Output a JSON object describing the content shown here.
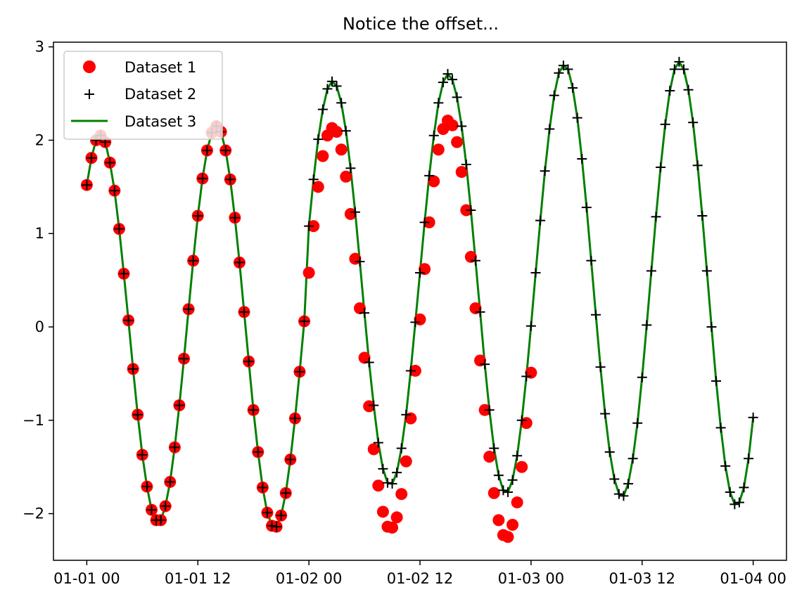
{
  "chart_data": {
    "type": "line",
    "title": "Notice the offset...",
    "xlabel": "",
    "ylabel": "",
    "x_unit": "datetime",
    "xlim": [
      "2021-01-01T00:00",
      "2021-01-04T00:00"
    ],
    "ylim": [
      -2.5,
      3.05
    ],
    "x_ticks": [
      "01-01 00",
      "01-01 12",
      "01-02 00",
      "01-02 12",
      "01-03 00",
      "01-03 12",
      "01-04 00"
    ],
    "y_ticks": [
      "−2",
      "−1",
      "0",
      "1",
      "2",
      "3"
    ],
    "grid": false,
    "legend_position": "upper-left",
    "series": [
      {
        "name": "Dataset 1",
        "style": "marker-circle",
        "color": "#ff0000",
        "x": [
          "2021-01-01T00:00",
          "2021-01-01T00:30",
          "2021-01-01T01:00",
          "2021-01-01T01:30",
          "2021-01-01T02:00",
          "2021-01-01T02:30",
          "2021-01-01T03:00",
          "2021-01-01T03:30",
          "2021-01-01T04:00",
          "2021-01-01T04:30",
          "2021-01-01T05:00",
          "2021-01-01T05:30",
          "2021-01-01T06:00",
          "2021-01-01T06:30",
          "2021-01-01T07:00",
          "2021-01-01T07:30",
          "2021-01-01T08:00",
          "2021-01-01T08:30",
          "2021-01-01T09:00",
          "2021-01-01T09:30",
          "2021-01-01T10:00",
          "2021-01-01T10:30",
          "2021-01-01T11:00",
          "2021-01-01T11:30",
          "2021-01-01T12:00",
          "2021-01-01T12:30",
          "2021-01-01T13:00",
          "2021-01-01T13:30",
          "2021-01-01T14:00",
          "2021-01-01T14:30",
          "2021-01-01T15:00",
          "2021-01-01T15:30",
          "2021-01-01T16:00",
          "2021-01-01T16:30",
          "2021-01-01T17:00",
          "2021-01-01T17:30",
          "2021-01-01T18:00",
          "2021-01-01T18:30",
          "2021-01-01T19:00",
          "2021-01-01T19:30",
          "2021-01-01T20:00",
          "2021-01-01T20:30",
          "2021-01-01T21:00",
          "2021-01-01T21:30",
          "2021-01-01T22:00",
          "2021-01-01T22:30",
          "2021-01-01T23:00",
          "2021-01-01T23:30",
          "2021-01-02T00:00",
          "2021-01-02T00:30",
          "2021-01-02T01:00",
          "2021-01-02T01:30",
          "2021-01-02T02:00",
          "2021-01-02T02:30",
          "2021-01-02T03:00",
          "2021-01-02T03:30",
          "2021-01-02T04:00",
          "2021-01-02T04:30",
          "2021-01-02T05:00",
          "2021-01-02T05:30",
          "2021-01-02T06:00",
          "2021-01-02T06:30",
          "2021-01-02T07:00",
          "2021-01-02T07:30",
          "2021-01-02T08:00",
          "2021-01-02T08:30",
          "2021-01-02T09:00",
          "2021-01-02T09:30",
          "2021-01-02T10:00",
          "2021-01-02T10:30",
          "2021-01-02T11:00",
          "2021-01-02T11:30",
          "2021-01-02T12:00",
          "2021-01-02T12:30",
          "2021-01-02T13:00",
          "2021-01-02T13:30",
          "2021-01-02T14:00",
          "2021-01-02T14:30",
          "2021-01-02T15:00",
          "2021-01-02T15:30",
          "2021-01-02T16:00",
          "2021-01-02T16:30",
          "2021-01-02T17:00",
          "2021-01-02T17:30",
          "2021-01-02T18:00",
          "2021-01-02T18:30",
          "2021-01-02T19:00",
          "2021-01-02T19:30",
          "2021-01-02T20:00",
          "2021-01-02T20:30",
          "2021-01-02T21:00",
          "2021-01-02T21:30",
          "2021-01-02T22:00",
          "2021-01-02T22:30",
          "2021-01-02T23:00",
          "2021-01-02T23:30",
          "2021-01-03T00:00"
        ],
        "y": [
          1.52,
          1.81,
          2.0,
          2.05,
          1.98,
          1.76,
          1.46,
          1.05,
          0.57,
          0.07,
          -0.45,
          -0.94,
          -1.37,
          -1.71,
          -1.96,
          -2.07,
          -2.07,
          -1.92,
          -1.66,
          -1.29,
          -0.84,
          -0.34,
          0.19,
          0.71,
          1.19,
          1.59,
          1.89,
          2.08,
          2.15,
          2.09,
          1.89,
          1.58,
          1.17,
          0.69,
          0.16,
          -0.37,
          -0.89,
          -1.34,
          -1.72,
          -1.99,
          -2.13,
          -2.14,
          -2.02,
          -1.78,
          -1.42,
          -0.98,
          -0.48,
          0.06,
          0.58,
          1.08,
          1.5,
          1.83,
          2.05,
          2.13,
          2.09,
          1.9,
          1.61,
          1.21,
          0.73,
          0.2,
          -0.33,
          -0.85,
          -1.31,
          -1.7,
          -1.98,
          -2.14,
          -2.15,
          -2.04,
          -1.79,
          -1.44,
          -0.98,
          -0.47,
          0.08,
          0.62,
          1.12,
          1.56,
          1.9,
          2.12,
          2.21,
          2.16,
          1.98,
          1.66,
          1.25,
          0.75,
          0.2,
          -0.36,
          -0.89,
          -1.39,
          -1.78,
          -2.07,
          -2.23,
          -2.25,
          -2.12,
          -1.88,
          -1.5,
          -1.03,
          -0.49
        ]
      },
      {
        "name": "Dataset 2",
        "style": "marker-plus",
        "color": "#000000",
        "x": [
          "2021-01-01T00:00",
          "2021-01-01T00:30",
          "2021-01-01T01:00",
          "2021-01-01T01:30",
          "2021-01-01T02:00",
          "2021-01-01T02:30",
          "2021-01-01T03:00",
          "2021-01-01T03:30",
          "2021-01-01T04:00",
          "2021-01-01T04:30",
          "2021-01-01T05:00",
          "2021-01-01T05:30",
          "2021-01-01T06:00",
          "2021-01-01T06:30",
          "2021-01-01T07:00",
          "2021-01-01T07:30",
          "2021-01-01T08:00",
          "2021-01-01T08:30",
          "2021-01-01T09:00",
          "2021-01-01T09:30",
          "2021-01-01T10:00",
          "2021-01-01T10:30",
          "2021-01-01T11:00",
          "2021-01-01T11:30",
          "2021-01-01T12:00",
          "2021-01-01T12:30",
          "2021-01-01T13:00",
          "2021-01-01T13:30",
          "2021-01-01T14:00",
          "2021-01-01T14:30",
          "2021-01-01T15:00",
          "2021-01-01T15:30",
          "2021-01-01T16:00",
          "2021-01-01T16:30",
          "2021-01-01T17:00",
          "2021-01-01T17:30",
          "2021-01-01T18:00",
          "2021-01-01T18:30",
          "2021-01-01T19:00",
          "2021-01-01T19:30",
          "2021-01-01T20:00",
          "2021-01-01T20:30",
          "2021-01-01T21:00",
          "2021-01-01T21:30",
          "2021-01-01T22:00",
          "2021-01-01T22:30",
          "2021-01-01T23:00",
          "2021-01-01T23:30",
          "2021-01-02T00:00",
          "2021-01-02T00:30",
          "2021-01-02T01:00",
          "2021-01-02T01:30",
          "2021-01-02T02:00",
          "2021-01-02T02:30",
          "2021-01-02T03:00",
          "2021-01-02T03:30",
          "2021-01-02T04:00",
          "2021-01-02T04:30",
          "2021-01-02T05:00",
          "2021-01-02T05:30",
          "2021-01-02T06:00",
          "2021-01-02T06:30",
          "2021-01-02T07:00",
          "2021-01-02T07:30",
          "2021-01-02T08:00",
          "2021-01-02T08:30",
          "2021-01-02T09:00",
          "2021-01-02T09:30",
          "2021-01-02T10:00",
          "2021-01-02T10:30",
          "2021-01-02T11:00",
          "2021-01-02T11:30",
          "2021-01-02T12:00",
          "2021-01-02T12:30",
          "2021-01-02T13:00",
          "2021-01-02T13:30",
          "2021-01-02T14:00",
          "2021-01-02T14:30",
          "2021-01-02T15:00",
          "2021-01-02T15:30",
          "2021-01-02T16:00",
          "2021-01-02T16:30",
          "2021-01-02T17:00",
          "2021-01-02T17:30",
          "2021-01-02T18:00",
          "2021-01-02T18:30",
          "2021-01-02T19:00",
          "2021-01-02T19:30",
          "2021-01-02T20:00",
          "2021-01-02T20:30",
          "2021-01-02T21:00",
          "2021-01-02T21:30",
          "2021-01-02T22:00",
          "2021-01-02T22:30",
          "2021-01-02T23:00",
          "2021-01-02T23:30",
          "2021-01-03T00:00",
          "2021-01-03T00:30",
          "2021-01-03T01:00",
          "2021-01-03T01:30",
          "2021-01-03T02:00",
          "2021-01-03T02:30",
          "2021-01-03T03:00",
          "2021-01-03T03:30",
          "2021-01-03T04:00",
          "2021-01-03T04:30",
          "2021-01-03T05:00",
          "2021-01-03T05:30",
          "2021-01-03T06:00",
          "2021-01-03T06:30",
          "2021-01-03T07:00",
          "2021-01-03T07:30",
          "2021-01-03T08:00",
          "2021-01-03T08:30",
          "2021-01-03T09:00",
          "2021-01-03T09:30",
          "2021-01-03T10:00",
          "2021-01-03T10:30",
          "2021-01-03T11:00",
          "2021-01-03T11:30",
          "2021-01-03T12:00",
          "2021-01-03T12:30",
          "2021-01-03T13:00",
          "2021-01-03T13:30",
          "2021-01-03T14:00",
          "2021-01-03T14:30",
          "2021-01-03T15:00",
          "2021-01-03T15:30",
          "2021-01-03T16:00",
          "2021-01-03T16:30",
          "2021-01-03T17:00",
          "2021-01-03T17:30",
          "2021-01-03T18:00",
          "2021-01-03T18:30",
          "2021-01-03T19:00",
          "2021-01-03T19:30",
          "2021-01-03T20:00",
          "2021-01-03T20:30",
          "2021-01-03T21:00",
          "2021-01-03T21:30",
          "2021-01-03T22:00",
          "2021-01-03T22:30",
          "2021-01-03T23:00",
          "2021-01-03T23:30",
          "2021-01-04T00:00"
        ],
        "y": [
          1.52,
          1.81,
          2.0,
          2.05,
          1.98,
          1.76,
          1.46,
          1.05,
          0.57,
          0.07,
          -0.45,
          -0.94,
          -1.37,
          -1.71,
          -1.96,
          -2.07,
          -2.07,
          -1.92,
          -1.66,
          -1.29,
          -0.84,
          -0.34,
          0.19,
          0.71,
          1.19,
          1.59,
          1.89,
          2.08,
          2.15,
          2.09,
          1.89,
          1.58,
          1.17,
          0.69,
          0.16,
          -0.37,
          -0.89,
          -1.34,
          -1.72,
          -1.99,
          -2.13,
          -2.14,
          -2.02,
          -1.78,
          -1.42,
          -0.98,
          -0.48,
          0.06,
          1.08,
          1.58,
          2.01,
          2.33,
          2.55,
          2.63,
          2.58,
          2.4,
          2.1,
          1.7,
          1.23,
          0.7,
          0.15,
          -0.38,
          -0.84,
          -1.24,
          -1.52,
          -1.67,
          -1.68,
          -1.56,
          -1.3,
          -0.94,
          -0.47,
          0.05,
          0.58,
          1.12,
          1.62,
          2.05,
          2.4,
          2.62,
          2.71,
          2.65,
          2.46,
          2.15,
          1.74,
          1.25,
          0.71,
          0.16,
          -0.4,
          -0.89,
          -1.3,
          -1.59,
          -1.75,
          -1.77,
          -1.64,
          -1.38,
          -1.0,
          -0.53,
          0.01,
          0.58,
          1.14,
          1.67,
          2.12,
          2.48,
          2.72,
          2.8,
          2.76,
          2.56,
          2.24,
          1.8,
          1.28,
          0.71,
          0.13,
          -0.43,
          -0.93,
          -1.34,
          -1.63,
          -1.79,
          -1.81,
          -1.68,
          -1.41,
          -1.03,
          -0.54,
          0.02,
          0.6,
          1.18,
          1.71,
          2.17,
          2.53,
          2.76,
          2.84,
          2.76,
          2.54,
          2.19,
          1.73,
          1.19,
          0.6,
          0.0,
          -0.58,
          -1.08,
          -1.49,
          -1.77,
          -1.9,
          -1.88,
          -1.72,
          -1.41,
          -0.97
        ]
      },
      {
        "name": "Dataset 3",
        "style": "line",
        "color": "#008000",
        "x": [
          "2021-01-01T00:00",
          "2021-01-01T00:30",
          "2021-01-01T01:00",
          "2021-01-01T01:30",
          "2021-01-01T02:00",
          "2021-01-01T02:30",
          "2021-01-01T03:00",
          "2021-01-01T03:30",
          "2021-01-01T04:00",
          "2021-01-01T04:30",
          "2021-01-01T05:00",
          "2021-01-01T05:30",
          "2021-01-01T06:00",
          "2021-01-01T06:30",
          "2021-01-01T07:00",
          "2021-01-01T07:30",
          "2021-01-01T08:00",
          "2021-01-01T08:30",
          "2021-01-01T09:00",
          "2021-01-01T09:30",
          "2021-01-01T10:00",
          "2021-01-01T10:30",
          "2021-01-01T11:00",
          "2021-01-01T11:30",
          "2021-01-01T12:00",
          "2021-01-01T12:30",
          "2021-01-01T13:00",
          "2021-01-01T13:30",
          "2021-01-01T14:00",
          "2021-01-01T14:30",
          "2021-01-01T15:00",
          "2021-01-01T15:30",
          "2021-01-01T16:00",
          "2021-01-01T16:30",
          "2021-01-01T17:00",
          "2021-01-01T17:30",
          "2021-01-01T18:00",
          "2021-01-01T18:30",
          "2021-01-01T19:00",
          "2021-01-01T19:30",
          "2021-01-01T20:00",
          "2021-01-01T20:30",
          "2021-01-01T21:00",
          "2021-01-01T21:30",
          "2021-01-01T22:00",
          "2021-01-01T22:30",
          "2021-01-01T23:00",
          "2021-01-01T23:30",
          "2021-01-02T00:00",
          "2021-01-02T00:30",
          "2021-01-02T01:00",
          "2021-01-02T01:30",
          "2021-01-02T02:00",
          "2021-01-02T02:30",
          "2021-01-02T03:00",
          "2021-01-02T03:30",
          "2021-01-02T04:00",
          "2021-01-02T04:30",
          "2021-01-02T05:00",
          "2021-01-02T05:30",
          "2021-01-02T06:00",
          "2021-01-02T06:30",
          "2021-01-02T07:00",
          "2021-01-02T07:30",
          "2021-01-02T08:00",
          "2021-01-02T08:30",
          "2021-01-02T09:00",
          "2021-01-02T09:30",
          "2021-01-02T10:00",
          "2021-01-02T10:30",
          "2021-01-02T11:00",
          "2021-01-02T11:30",
          "2021-01-02T12:00",
          "2021-01-02T12:30",
          "2021-01-02T13:00",
          "2021-01-02T13:30",
          "2021-01-02T14:00",
          "2021-01-02T14:30",
          "2021-01-02T15:00",
          "2021-01-02T15:30",
          "2021-01-02T16:00",
          "2021-01-02T16:30",
          "2021-01-02T17:00",
          "2021-01-02T17:30",
          "2021-01-02T18:00",
          "2021-01-02T18:30",
          "2021-01-02T19:00",
          "2021-01-02T19:30",
          "2021-01-02T20:00",
          "2021-01-02T20:30",
          "2021-01-02T21:00",
          "2021-01-02T21:30",
          "2021-01-02T22:00",
          "2021-01-02T22:30",
          "2021-01-02T23:00",
          "2021-01-02T23:30",
          "2021-01-03T00:00",
          "2021-01-03T00:30",
          "2021-01-03T01:00",
          "2021-01-03T01:30",
          "2021-01-03T02:00",
          "2021-01-03T02:30",
          "2021-01-03T03:00",
          "2021-01-03T03:30",
          "2021-01-03T04:00",
          "2021-01-03T04:30",
          "2021-01-03T05:00",
          "2021-01-03T05:30",
          "2021-01-03T06:00",
          "2021-01-03T06:30",
          "2021-01-03T07:00",
          "2021-01-03T07:30",
          "2021-01-03T08:00",
          "2021-01-03T08:30",
          "2021-01-03T09:00",
          "2021-01-03T09:30",
          "2021-01-03T10:00",
          "2021-01-03T10:30",
          "2021-01-03T11:00",
          "2021-01-03T11:30",
          "2021-01-03T12:00",
          "2021-01-03T12:30",
          "2021-01-03T13:00",
          "2021-01-03T13:30",
          "2021-01-03T14:00",
          "2021-01-03T14:30",
          "2021-01-03T15:00",
          "2021-01-03T15:30",
          "2021-01-03T16:00",
          "2021-01-03T16:30",
          "2021-01-03T17:00",
          "2021-01-03T17:30",
          "2021-01-03T18:00",
          "2021-01-03T18:30",
          "2021-01-03T19:00",
          "2021-01-03T19:30",
          "2021-01-03T20:00",
          "2021-01-03T20:30",
          "2021-01-03T21:00",
          "2021-01-03T21:30",
          "2021-01-03T22:00",
          "2021-01-03T22:30",
          "2021-01-03T23:00",
          "2021-01-03T23:30",
          "2021-01-04T00:00"
        ],
        "y": [
          1.52,
          1.81,
          2.0,
          2.05,
          1.98,
          1.76,
          1.46,
          1.05,
          0.57,
          0.07,
          -0.45,
          -0.94,
          -1.37,
          -1.71,
          -1.96,
          -2.07,
          -2.07,
          -1.92,
          -1.66,
          -1.29,
          -0.84,
          -0.34,
          0.19,
          0.71,
          1.19,
          1.59,
          1.89,
          2.08,
          2.15,
          2.09,
          1.89,
          1.58,
          1.17,
          0.69,
          0.16,
          -0.37,
          -0.89,
          -1.34,
          -1.72,
          -1.99,
          -2.13,
          -2.14,
          -2.02,
          -1.78,
          -1.42,
          -0.98,
          -0.48,
          0.06,
          1.08,
          1.58,
          2.01,
          2.33,
          2.55,
          2.63,
          2.58,
          2.4,
          2.1,
          1.7,
          1.23,
          0.7,
          0.15,
          -0.38,
          -0.84,
          -1.24,
          -1.52,
          -1.67,
          -1.68,
          -1.56,
          -1.3,
          -0.94,
          -0.47,
          0.05,
          0.58,
          1.12,
          1.62,
          2.05,
          2.4,
          2.62,
          2.71,
          2.65,
          2.46,
          2.15,
          1.74,
          1.25,
          0.71,
          0.16,
          -0.4,
          -0.89,
          -1.3,
          -1.59,
          -1.75,
          -1.77,
          -1.64,
          -1.38,
          -1.0,
          -0.53,
          0.01,
          0.58,
          1.14,
          1.67,
          2.12,
          2.48,
          2.72,
          2.8,
          2.76,
          2.56,
          2.24,
          1.8,
          1.28,
          0.71,
          0.13,
          -0.43,
          -0.93,
          -1.34,
          -1.63,
          -1.79,
          -1.81,
          -1.68,
          -1.41,
          -1.03,
          -0.54,
          0.02,
          0.6,
          1.18,
          1.71,
          2.17,
          2.53,
          2.76,
          2.84,
          2.76,
          2.54,
          2.19,
          1.73,
          1.19,
          0.6,
          0.0,
          -0.58,
          -1.08,
          -1.49,
          -1.77,
          -1.9,
          -1.88,
          -1.72,
          -1.41,
          -0.97
        ]
      }
    ]
  }
}
